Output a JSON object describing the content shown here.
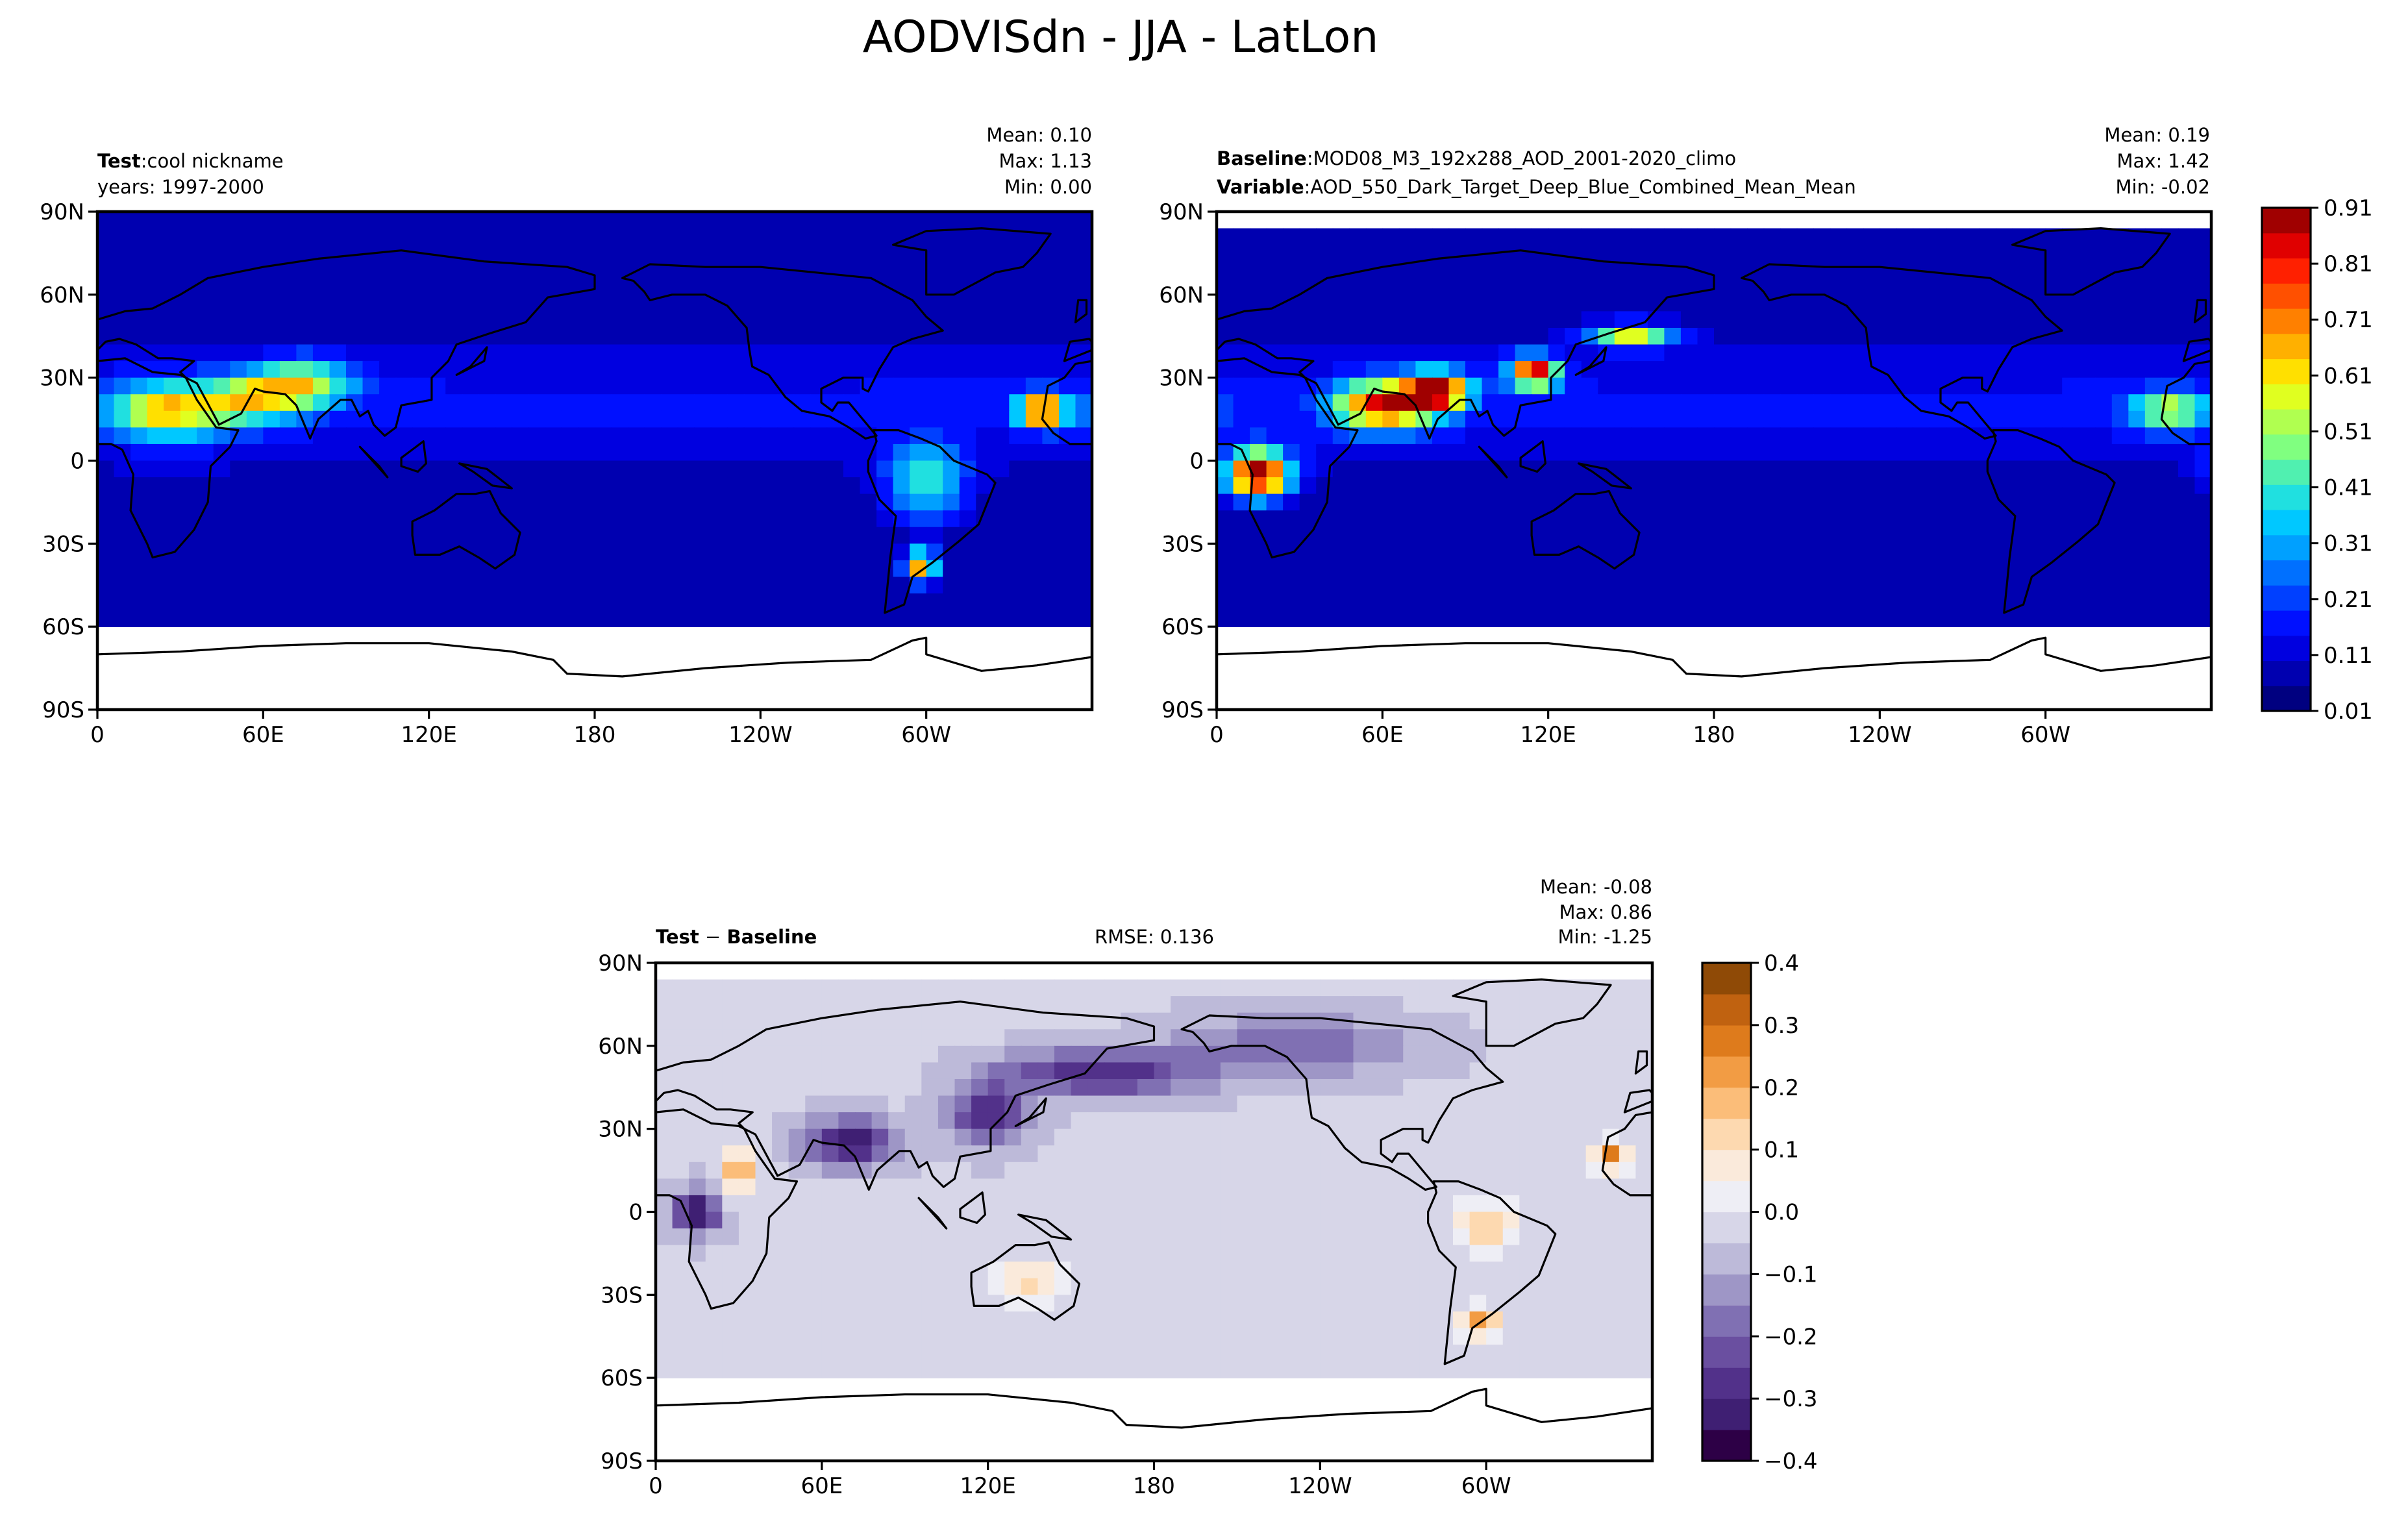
{
  "title": "AODVISdn - JJA - LatLon",
  "chart_data": [
    {
      "type": "heatmap",
      "id": "test",
      "left_title_bold": "Test",
      "left_title_sep": ":",
      "left_title_rest": "cool nickname",
      "left_title_line2": "years: 1997-2000",
      "stats": {
        "mean": "Mean:  0.10",
        "max": "Max:  1.13",
        "min": "Min:  0.00"
      },
      "xticks": [
        "0",
        "60E",
        "120E",
        "180",
        "120W",
        "60W"
      ],
      "yticks": [
        "90N",
        "60N",
        "30N",
        "0",
        "30S",
        "60S",
        "90S"
      ],
      "missing_south_of": -62,
      "field_scale": 0.55,
      "hotspots": [
        {
          "lon": 25,
          "lat": 18,
          "value": 0.55,
          "sx": 14,
          "sy": 7
        },
        {
          "lon": 55,
          "lat": 22,
          "value": 0.45,
          "sx": 12,
          "sy": 6
        },
        {
          "lon": 75,
          "lat": 28,
          "value": 0.45,
          "sx": 12,
          "sy": 6
        },
        {
          "lon": 342,
          "lat": 18,
          "value": 0.8,
          "sx": 6,
          "sy": 4
        },
        {
          "lon": 300,
          "lat": -8,
          "value": 0.35,
          "sx": 10,
          "sy": 10
        },
        {
          "lon": 298,
          "lat": -38,
          "value": 0.7,
          "sx": 4,
          "sy": 4
        }
      ]
    },
    {
      "type": "heatmap",
      "id": "baseline",
      "left_title_bold": "Baseline",
      "left_title_sep": ":",
      "left_title_rest": "MOD08_M3_192x288_AOD_2001-2020_climo",
      "left_title_line2_bold": "Variable",
      "left_title_line2_sep": ":",
      "left_title_line2_rest": "AOD_550_Dark_Target_Deep_Blue_Combined_Mean_Mean",
      "stats": {
        "mean": "Mean:  0.19",
        "max": "Max:  1.42",
        "min": "Min: -0.02"
      },
      "xticks": [
        "0",
        "60E",
        "120E",
        "180",
        "120W",
        "60W"
      ],
      "yticks": [
        "90N",
        "60N",
        "30N",
        "0",
        "30S",
        "60S",
        "90S"
      ],
      "missing_south_of": -60,
      "missing_north_of": 82,
      "field_scale": 1.0,
      "hotspots": [
        {
          "lon": 15,
          "lat": -5,
          "value": 0.9,
          "sx": 8,
          "sy": 6
        },
        {
          "lon": 60,
          "lat": 20,
          "value": 0.75,
          "sx": 12,
          "sy": 6
        },
        {
          "lon": 80,
          "lat": 25,
          "value": 0.8,
          "sx": 8,
          "sy": 5
        },
        {
          "lon": 115,
          "lat": 32,
          "value": 0.8,
          "sx": 6,
          "sy": 4
        },
        {
          "lon": 150,
          "lat": 45,
          "value": 0.55,
          "sx": 10,
          "sy": 3
        },
        {
          "lon": 345,
          "lat": 18,
          "value": 0.45,
          "sx": 10,
          "sy": 5
        }
      ]
    },
    {
      "type": "heatmap",
      "id": "diff",
      "left_title_bold": "Test",
      "left_title_sep": " − ",
      "left_title_rest_bold": "Baseline",
      "center_title": "RMSE: 0.136",
      "stats": {
        "mean": "Mean: -0.08",
        "max": "Max:  0.86",
        "min": "Min: -1.25"
      },
      "xticks": [
        "0",
        "60E",
        "120E",
        "180",
        "120W",
        "60W"
      ],
      "yticks": [
        "90N",
        "60N",
        "30N",
        "0",
        "30S",
        "60S",
        "90S"
      ],
      "missing_south_of": -60,
      "missing_north_of": 82,
      "hotspots": [
        {
          "lon": 30,
          "lat": 15,
          "value": 0.3,
          "sx": 4,
          "sy": 6
        },
        {
          "lon": 135,
          "lat": -25,
          "value": 0.15,
          "sx": 10,
          "sy": 6
        },
        {
          "lon": 300,
          "lat": -5,
          "value": 0.2,
          "sx": 8,
          "sy": 6
        },
        {
          "lon": 298,
          "lat": -40,
          "value": 0.3,
          "sx": 5,
          "sy": 4
        },
        {
          "lon": 345,
          "lat": 20,
          "value": 0.3,
          "sx": 4,
          "sy": 4
        },
        {
          "lon": 15,
          "lat": 0,
          "value": -0.3,
          "sx": 6,
          "sy": 6
        },
        {
          "lon": 70,
          "lat": 25,
          "value": -0.3,
          "sx": 12,
          "sy": 6
        },
        {
          "lon": 120,
          "lat": 35,
          "value": -0.25,
          "sx": 10,
          "sy": 8
        },
        {
          "lon": 160,
          "lat": 50,
          "value": -0.25,
          "sx": 25,
          "sy": 6
        },
        {
          "lon": 230,
          "lat": 60,
          "value": -0.15,
          "sx": 30,
          "sy": 8
        }
      ]
    }
  ],
  "colorbars": {
    "main": {
      "ticks": [
        "0.91",
        "0.81",
        "0.71",
        "0.61",
        "0.51",
        "0.41",
        "0.31",
        "0.21",
        "0.11",
        "0.01"
      ],
      "levels_min": 0.01,
      "levels_max": 0.96,
      "levels_step": 0.05,
      "colors": [
        "#000080",
        "#0000b0",
        "#0000e0",
        "#0010ff",
        "#0040ff",
        "#0070ff",
        "#00a0ff",
        "#00c8ff",
        "#20e0e0",
        "#50f0b0",
        "#80ff80",
        "#b0ff50",
        "#e0ff20",
        "#ffe000",
        "#ffb000",
        "#ff8000",
        "#ff5000",
        "#ff2000",
        "#e00000",
        "#a00000"
      ]
    },
    "diff": {
      "ticks": [
        "0.4",
        "0.3",
        "0.2",
        "0.1",
        "0.0",
        "−0.1",
        "−0.2",
        "−0.3",
        "−0.4"
      ],
      "levels_min": -0.4,
      "levels_max": 0.4,
      "levels_step": 0.05,
      "colors": [
        "#2d0046",
        "#3f1f73",
        "#52318a",
        "#6a4fa0",
        "#8070b3",
        "#9e96c6",
        "#bdbad9",
        "#d7d6e8",
        "#eeeef5",
        "#faeadb",
        "#fdd9b0",
        "#fbbd79",
        "#f29c44",
        "#de7b1c",
        "#c06210",
        "#8f4a06"
      ]
    }
  }
}
